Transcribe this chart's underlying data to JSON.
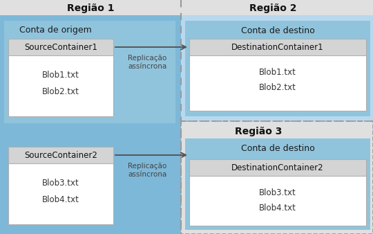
{
  "bg_color": "#e0e0e0",
  "region1_bg": "#7db8d8",
  "region2_bg": "#b8d8ee",
  "region3_bg": "#b8d8ee",
  "account1_bg": "#90c4dc",
  "account2_bg": "#90c4dc",
  "account3_bg": "#90c4dc",
  "container_header_bg": "#d4d4d4",
  "container_body_bg": "#ffffff",
  "container_border": "#b0b0b0",
  "text_dark": "#222222",
  "text_blob": "#555555",
  "arrow_color": "#555555",
  "dash_color": "#999999",
  "region1_label": "Região 1",
  "region2_label": "Região 2",
  "region3_label": "Região 3",
  "account1_label": "Conta de origem",
  "account2_label": "Conta de destino",
  "account3_label": "Conta de destino",
  "src_container1": "SourceContainer1",
  "src_container2": "SourceContainer2",
  "dst_container1": "DestinationContainer1",
  "dst_container2": "DestinationContainer2",
  "src_blobs1": [
    "Blob1.txt",
    "Blob2.txt"
  ],
  "src_blobs2": [
    "Blob3.txt",
    "Blob4.txt"
  ],
  "dst_blobs1": [
    "Blob1.txt",
    "Blob2.txt"
  ],
  "dst_blobs2": [
    "Blob3.txt",
    "Blob4.txt"
  ],
  "arrow_label": "Replicação\nassíncrona",
  "fig_w": 5.4,
  "fig_h": 3.38,
  "dpi": 100
}
